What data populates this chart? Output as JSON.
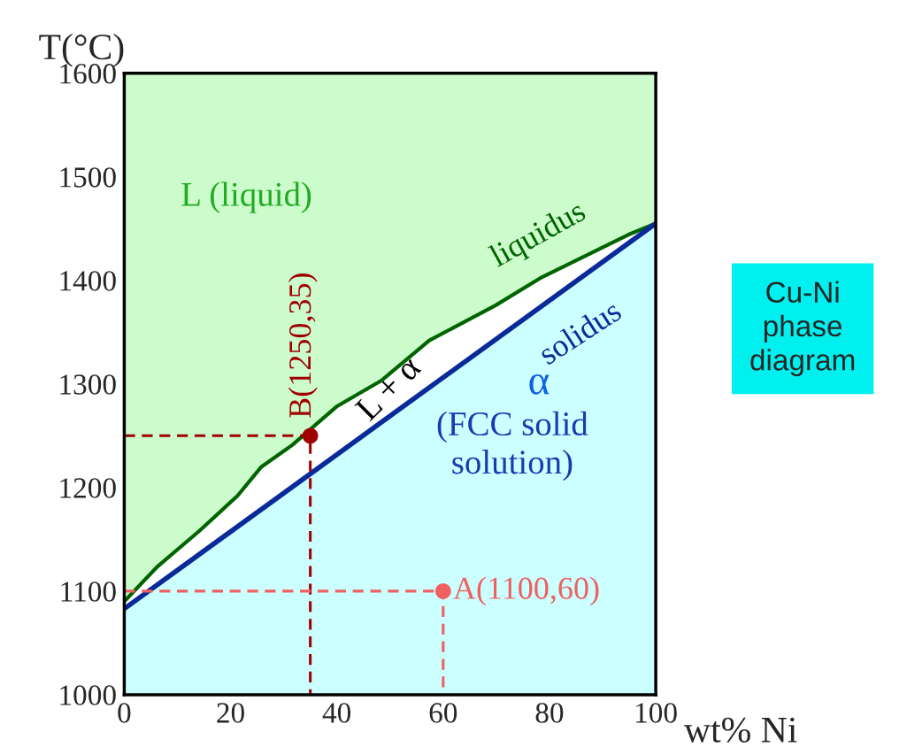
{
  "chart_data": {
    "type": "line",
    "xlabel": "wt% Ni",
    "ylabel": "T(°C)",
    "xlim": [
      0,
      100
    ],
    "ylim": [
      1000,
      1600
    ],
    "xticks": [
      0,
      20,
      40,
      60,
      80,
      100
    ],
    "yticks": [
      1000,
      1100,
      1200,
      1300,
      1400,
      1500,
      1600
    ],
    "series": [
      {
        "color": "#006400",
        "line_style": "solid",
        "x": [
          0,
          6.3,
          14.1,
          21.3,
          25.8,
          31.6,
          39.9,
          48.3,
          57.4,
          69.9,
          78.2,
          94.8,
          100
        ],
        "values": [
          1090,
          1124,
          1158,
          1192,
          1220,
          1241,
          1278,
          1303,
          1342,
          1376,
          1402,
          1444,
          1455
        ],
        "lower": [
          1090,
          1124,
          1158,
          1192,
          1220,
          1241,
          1278,
          1303,
          1342,
          1376,
          1402,
          1444,
          1455
        ],
        "upper": [
          1600,
          1600,
          1600,
          1600,
          1600,
          1600,
          1600,
          1600,
          1600,
          1600,
          1600,
          1600,
          1600
        ]
      },
      {
        "color": "#0a2a9a",
        "line_style": "solid",
        "x": [
          0,
          50,
          100
        ],
        "values": [
          1083,
          1269,
          1455
        ],
        "lower": [
          1000,
          1000,
          1000
        ],
        "upper": [
          1083,
          1269,
          1455
        ]
      },
      {
        "color": "#a00000",
        "line_style": "dashed",
        "x": [
          0,
          35,
          35
        ],
        "values": [
          1250,
          1250,
          1000
        ]
      },
      {
        "color": "#f06060",
        "line_style": "dashed",
        "x": [
          0,
          60,
          60
        ],
        "values": [
          1100,
          1100,
          1000
        ]
      },
      {
        "type": "scatter",
        "color": "#a00000",
        "marker": "circle",
        "x": [
          35
        ],
        "values": [
          1250
        ]
      },
      {
        "type": "scatter",
        "color": "#f06060",
        "marker": "circle",
        "x": [
          60
        ],
        "values": [
          1100
        ]
      }
    ],
    "annotations": [
      {
        "text": "B(1250,35)",
        "x": 35,
        "y": 1250
      },
      {
        "text": "A(1100,60)",
        "x": 60,
        "y": 1100
      },
      {
        "text": "liquidus",
        "x": 78,
        "y": 1402
      },
      {
        "text": "solidus",
        "x": 86,
        "y": 1395
      },
      "L (liquid)",
      "L + α",
      "α",
      "(FCC solid\nsolution)",
      "Cu-Ni\nphase\ndiagram"
    ]
  }
}
